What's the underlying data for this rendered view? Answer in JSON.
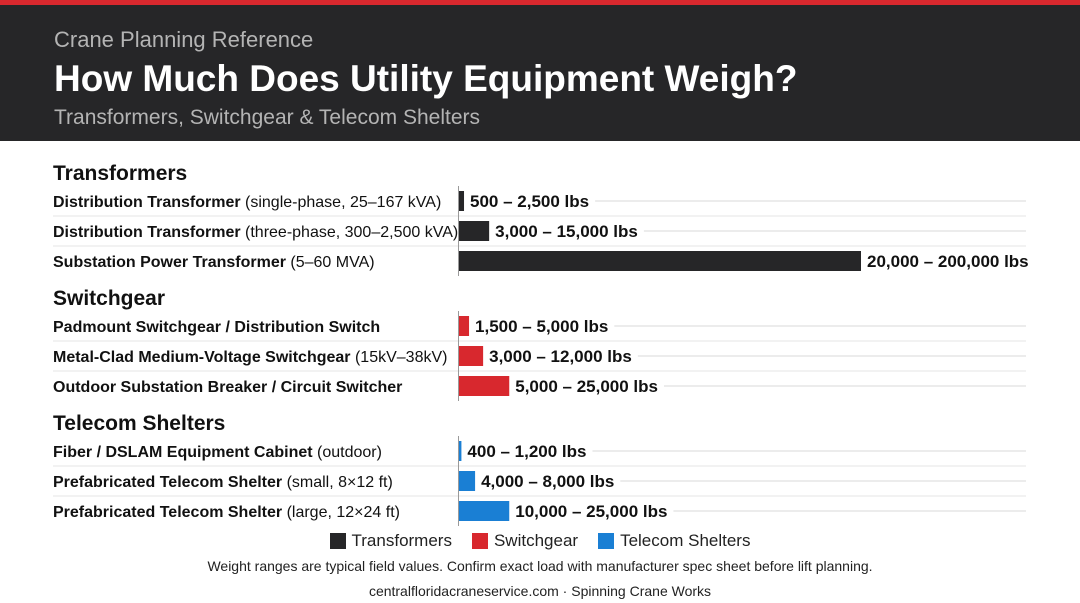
{
  "header": {
    "kicker": "Crane Planning Reference",
    "title": "How Much Does Utility Equipment Weigh?",
    "subtitle": "Transformers, Switchgear & Telecom Shelters"
  },
  "chart_data": {
    "type": "bar",
    "orientation": "horizontal",
    "unit": "lbs",
    "xlim": [
      0,
      200000
    ],
    "grid": false,
    "colors": {
      "Transformers": "#262628",
      "Switchgear": "#d8282e",
      "Telecom Shelters": "#1a7fd4"
    },
    "groups": [
      {
        "name": "Transformers",
        "items": [
          {
            "name": "Distribution Transformer",
            "detail": "(single-phase, 25–167 kVA)",
            "min": 500,
            "max": 2500,
            "label": "500 – 2,500 lbs"
          },
          {
            "name": "Distribution Transformer",
            "detail": "(three-phase, 300–2,500 kVA)",
            "min": 3000,
            "max": 15000,
            "label": "3,000 – 15,000 lbs"
          },
          {
            "name": "Substation Power Transformer",
            "detail": "(5–60 MVA)",
            "min": 20000,
            "max": 200000,
            "label": "20,000 – 200,000 lbs"
          }
        ]
      },
      {
        "name": "Switchgear",
        "items": [
          {
            "name": "Padmount Switchgear / Distribution Switch",
            "detail": "",
            "min": 1500,
            "max": 5000,
            "label": "1,500 – 5,000 lbs"
          },
          {
            "name": "Metal-Clad Medium-Voltage Switchgear",
            "detail": "(15kV–38kV)",
            "min": 3000,
            "max": 12000,
            "label": "3,000 – 12,000 lbs"
          },
          {
            "name": "Outdoor Substation Breaker / Circuit Switcher",
            "detail": "",
            "min": 5000,
            "max": 25000,
            "label": "5,000 – 25,000 lbs"
          }
        ]
      },
      {
        "name": "Telecom Shelters",
        "items": [
          {
            "name": "Fiber / DSLAM Equipment Cabinet",
            "detail": "(outdoor)",
            "min": 400,
            "max": 1200,
            "label": "400 – 1,200 lbs"
          },
          {
            "name": "Prefabricated Telecom Shelter",
            "detail": "(small, 8×12 ft)",
            "min": 4000,
            "max": 8000,
            "label": "4,000 – 8,000 lbs"
          },
          {
            "name": "Prefabricated Telecom Shelter",
            "detail": "(large, 12×24 ft)",
            "min": 10000,
            "max": 25000,
            "label": "10,000 – 25,000 lbs"
          }
        ]
      }
    ],
    "legend": [
      "Transformers",
      "Switchgear",
      "Telecom Shelters"
    ],
    "legend_position": "bottom-center"
  },
  "footer": {
    "note": "Weight ranges are typical field values. Confirm exact load with manufacturer spec sheet before lift planning.",
    "credit": "centralfloridacraneservice.com · Spinning Crane Works"
  }
}
